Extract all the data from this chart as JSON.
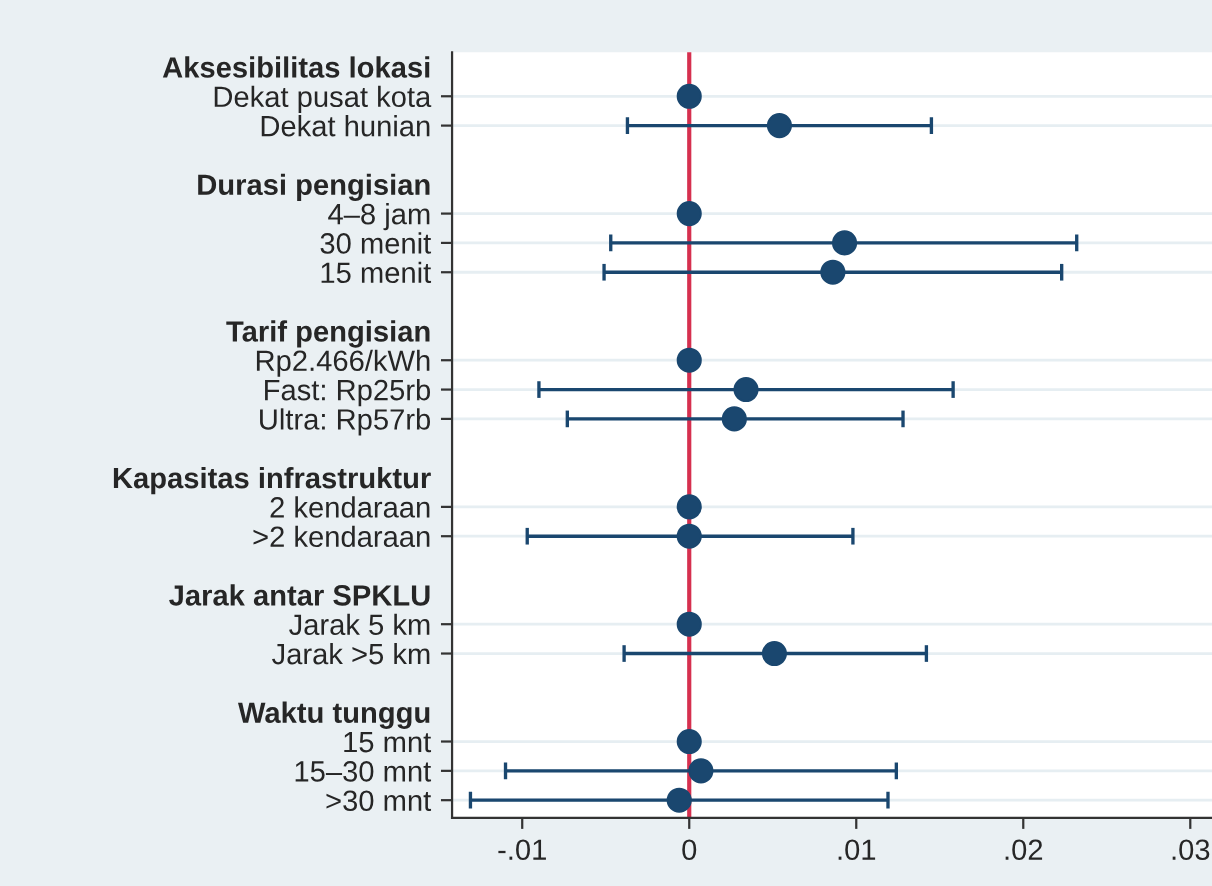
{
  "chart_data": {
    "type": "scatter",
    "orientation": "horizontal",
    "categories": [
      "Aksesibilitas lokasi",
      "Dekat pusat kota",
      "Dekat hunian",
      null,
      "Durasi pengisian",
      "4–8 jam",
      "30 menit",
      "15 menit",
      null,
      "Tarif pengisian",
      "Rp2.466/kWh",
      "Fast: Rp25rb",
      "Ultra: Rp57rb",
      null,
      "Kapasitas infrastruktur",
      "2 kendaraan",
      ">2 kendaraan",
      null,
      "Jarak antar SPKLU",
      "Jarak 5 km",
      "Jarak >5 km",
      null,
      "Waktu tunggu",
      "15 mnt",
      "15–30 mnt",
      ">30 mnt"
    ],
    "series": [
      {
        "color": "#1a476f",
        "values": [
          null,
          0,
          0.0054,
          null,
          null,
          0,
          0.0093,
          0.0086,
          null,
          null,
          0,
          0.0034,
          0.0027,
          null,
          null,
          0,
          0,
          null,
          null,
          0,
          0.0051,
          null,
          null,
          0,
          0.0007,
          -0.0006
        ],
        "errors": [
          null,
          null,
          [
            -0.0037,
            0.0145
          ],
          null,
          null,
          null,
          [
            -0.0047,
            0.0232
          ],
          [
            -0.0051,
            0.0223
          ],
          null,
          null,
          null,
          [
            -0.009,
            0.0158
          ],
          [
            -0.0073,
            0.0128
          ],
          null,
          null,
          null,
          [
            -0.0097,
            0.0098
          ],
          null,
          null,
          null,
          [
            -0.0039,
            0.0142
          ],
          null,
          null,
          null,
          [
            -0.011,
            0.0124
          ],
          [
            -0.0131,
            0.0119
          ]
        ]
      }
    ],
    "xlim": [
      -0.0142,
      0.0313
    ],
    "xticks": [
      {
        "value": -0.01,
        "label": "-.01"
      },
      0,
      {
        "value": 0.01,
        "label": ".01"
      },
      {
        "value": 0.02,
        "label": ".02"
      },
      {
        "value": 0.03,
        "label": ".03"
      }
    ],
    "ref_lines": [
      {
        "axis": "x",
        "value": 0,
        "color": "#d6304f"
      }
    ],
    "grid": "y",
    "marker": "circle",
    "legend": false
  }
}
